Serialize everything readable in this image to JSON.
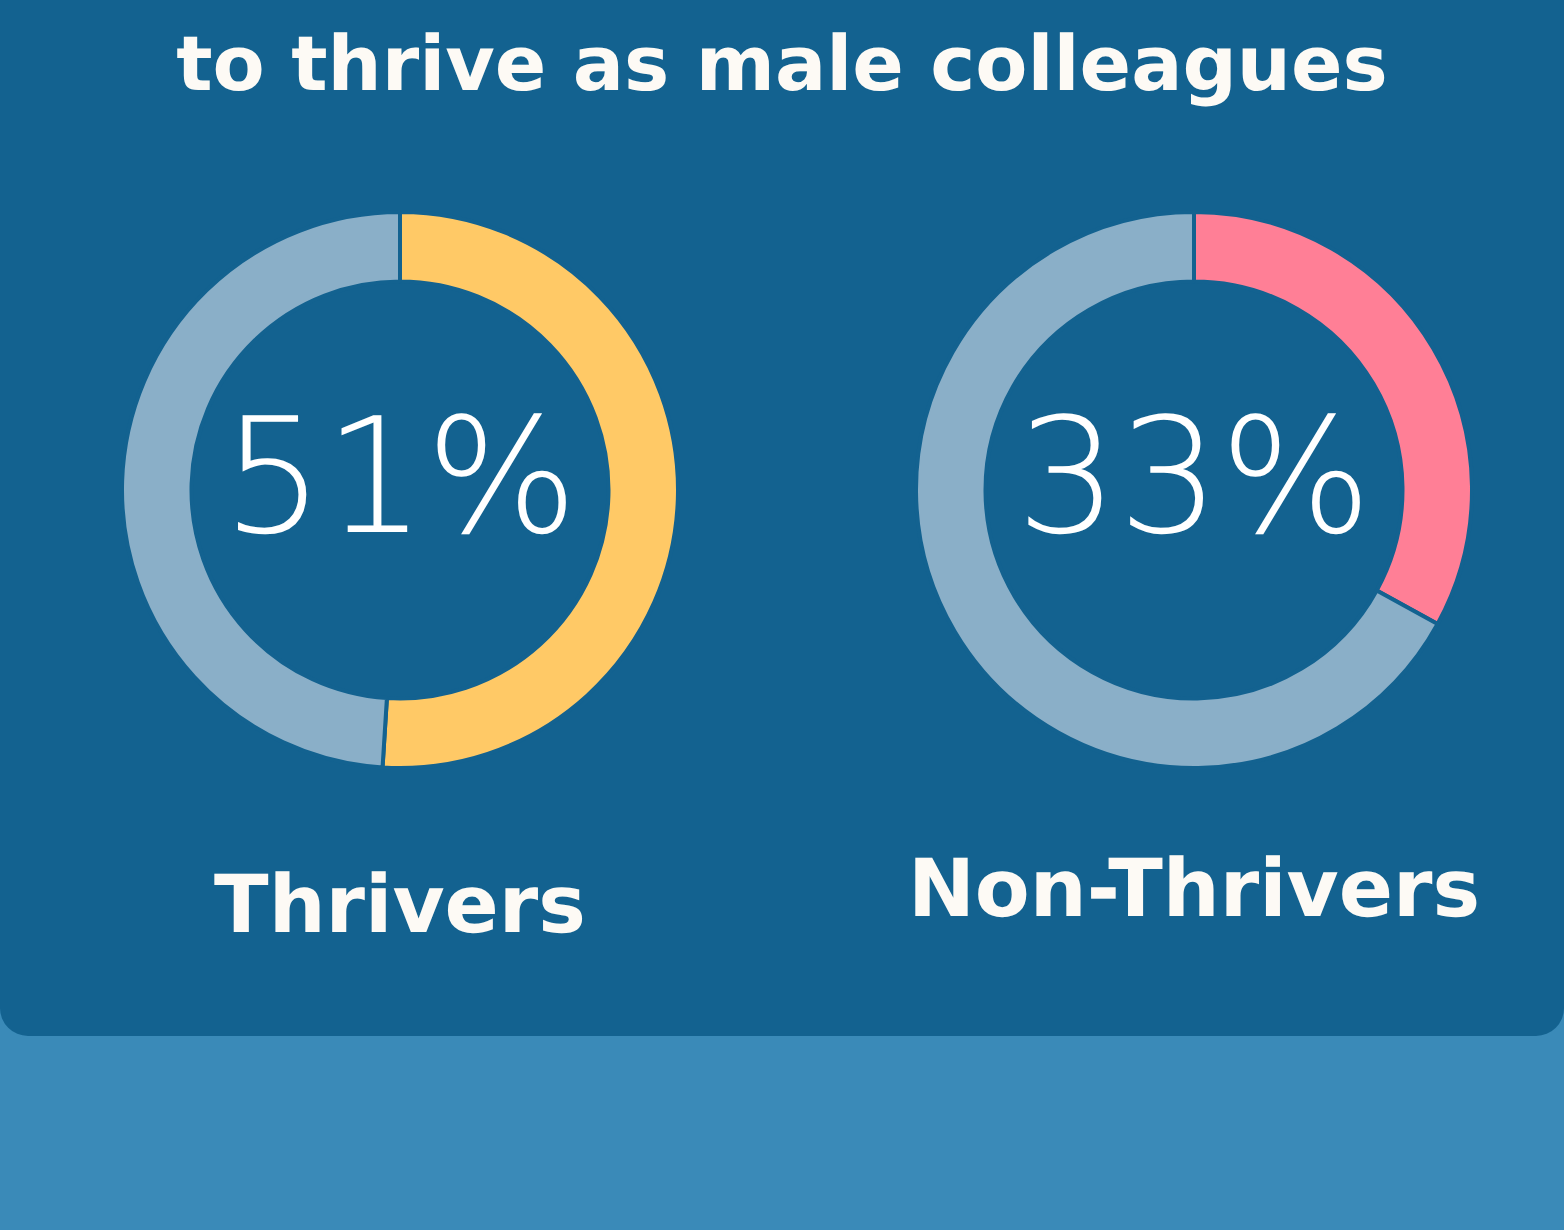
{
  "chart_data": [
    {
      "type": "other",
      "title": "to thrive as male colleagues"
    },
    {
      "type": "donut",
      "title": "Thrivers",
      "categories": [
        null,
        null
      ],
      "values": [
        51,
        49
      ],
      "colors": [
        "#ffc966",
        "#8aafc8"
      ],
      "annotations": [
        "51%"
      ]
    },
    {
      "type": "donut",
      "title": "Non-Thrivers",
      "categories": [
        null,
        null
      ],
      "values": [
        33,
        67
      ],
      "colors": [
        "#ff7f96",
        "#8aafc8"
      ],
      "annotations": [
        "33%"
      ]
    }
  ]
}
